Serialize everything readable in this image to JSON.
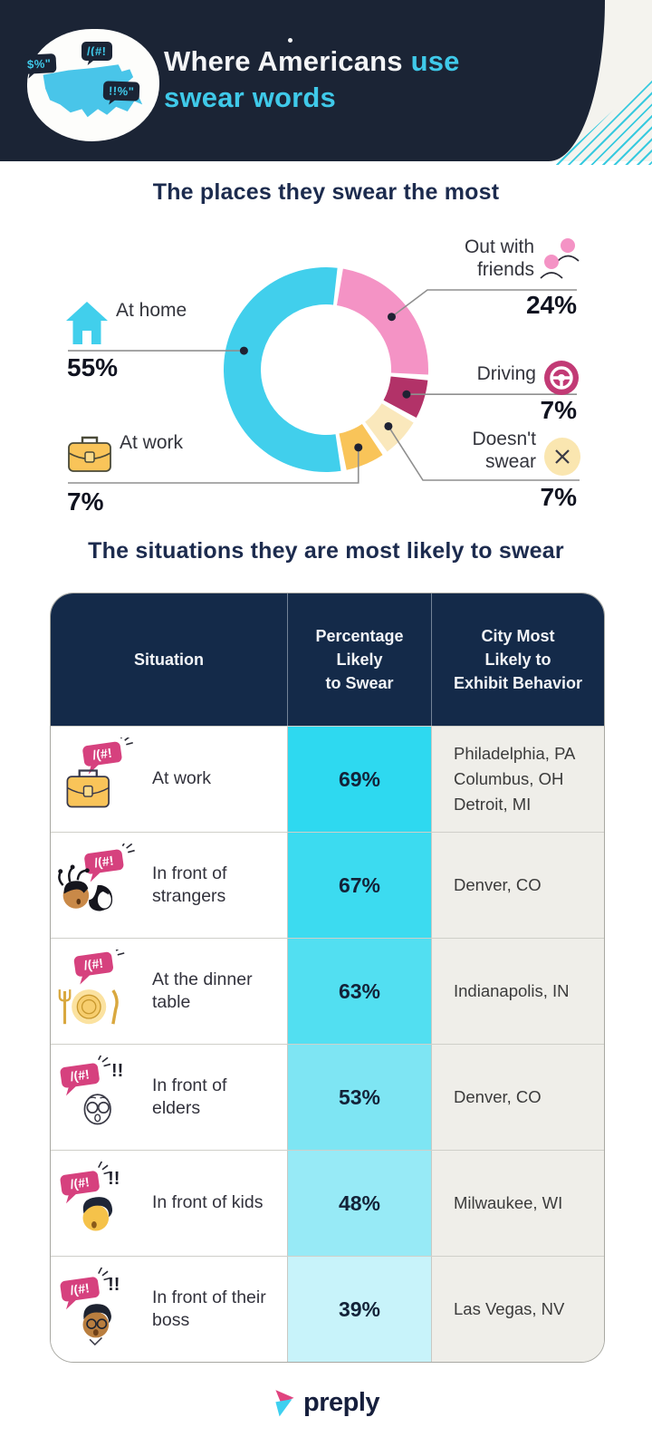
{
  "header": {
    "title_part1": "Where Americans",
    "title_part2": "use",
    "title_line2": "swear words",
    "logo_bubbles": [
      "$%\"",
      "/(#!",
      "!!%\""
    ]
  },
  "donut_section": {
    "title": "The places they swear the most"
  },
  "table_section": {
    "title": "The situations they are most likely to swear"
  },
  "chart_data": [
    {
      "type": "pie",
      "subtype": "donut",
      "title": "The places they swear the most",
      "legend_position": "around",
      "segments": [
        {
          "label": "Out with friends",
          "value": 24,
          "display": "24%",
          "color": "#F493C5",
          "icon": "friends-icon"
        },
        {
          "label": "Driving",
          "value": 7,
          "display": "7%",
          "color": "#B23268",
          "icon": "steering-wheel-icon"
        },
        {
          "label": "Doesn't swear",
          "value": 7,
          "display": "7%",
          "color": "#FAE8BC",
          "icon": "no-swear-icon"
        },
        {
          "label": "At work",
          "value": 7,
          "display": "7%",
          "color": "#F9C459",
          "icon": "briefcase-icon"
        },
        {
          "label": "At home",
          "value": 55,
          "display": "55%",
          "color": "#41CFEC",
          "icon": "house-icon"
        }
      ]
    },
    {
      "type": "table",
      "title": "The situations they are most likely to swear",
      "columns": [
        "Situation",
        "Percentage\nLikely\nto Swear",
        "City Most\nLikely to\nExhibit Behavior"
      ],
      "rows": [
        {
          "situation": "At work",
          "percentage": "69%",
          "cities": "Philadelphia, PA\nColumbus, OH\nDetroit, MI",
          "cell_color": "#2ED9F0",
          "icon": "work-swear"
        },
        {
          "situation": "In front of strangers",
          "percentage": "67%",
          "cities": "Denver, CO",
          "cell_color": "#3CDBF0",
          "icon": "strangers-swear"
        },
        {
          "situation": "At the dinner table",
          "percentage": "63%",
          "cities": "Indianapolis, IN",
          "cell_color": "#52DFF1",
          "icon": "dinner-swear"
        },
        {
          "situation": "In front of elders",
          "percentage": "53%",
          "cities": "Denver, CO",
          "cell_color": "#7EE5F3",
          "icon": "elders-swear"
        },
        {
          "situation": "In front of kids",
          "percentage": "48%",
          "cities": "Milwaukee, WI",
          "cell_color": "#97EAF6",
          "icon": "kids-swear"
        },
        {
          "situation": "In front of their boss",
          "percentage": "39%",
          "cities": "Las Vegas, NV",
          "cell_color": "#C8F3FA",
          "icon": "boss-swear"
        }
      ]
    }
  ],
  "glyphs": {
    "swear_bubble": "/(#!",
    "exclaim": "!!"
  },
  "footer": {
    "brand": "preply"
  }
}
